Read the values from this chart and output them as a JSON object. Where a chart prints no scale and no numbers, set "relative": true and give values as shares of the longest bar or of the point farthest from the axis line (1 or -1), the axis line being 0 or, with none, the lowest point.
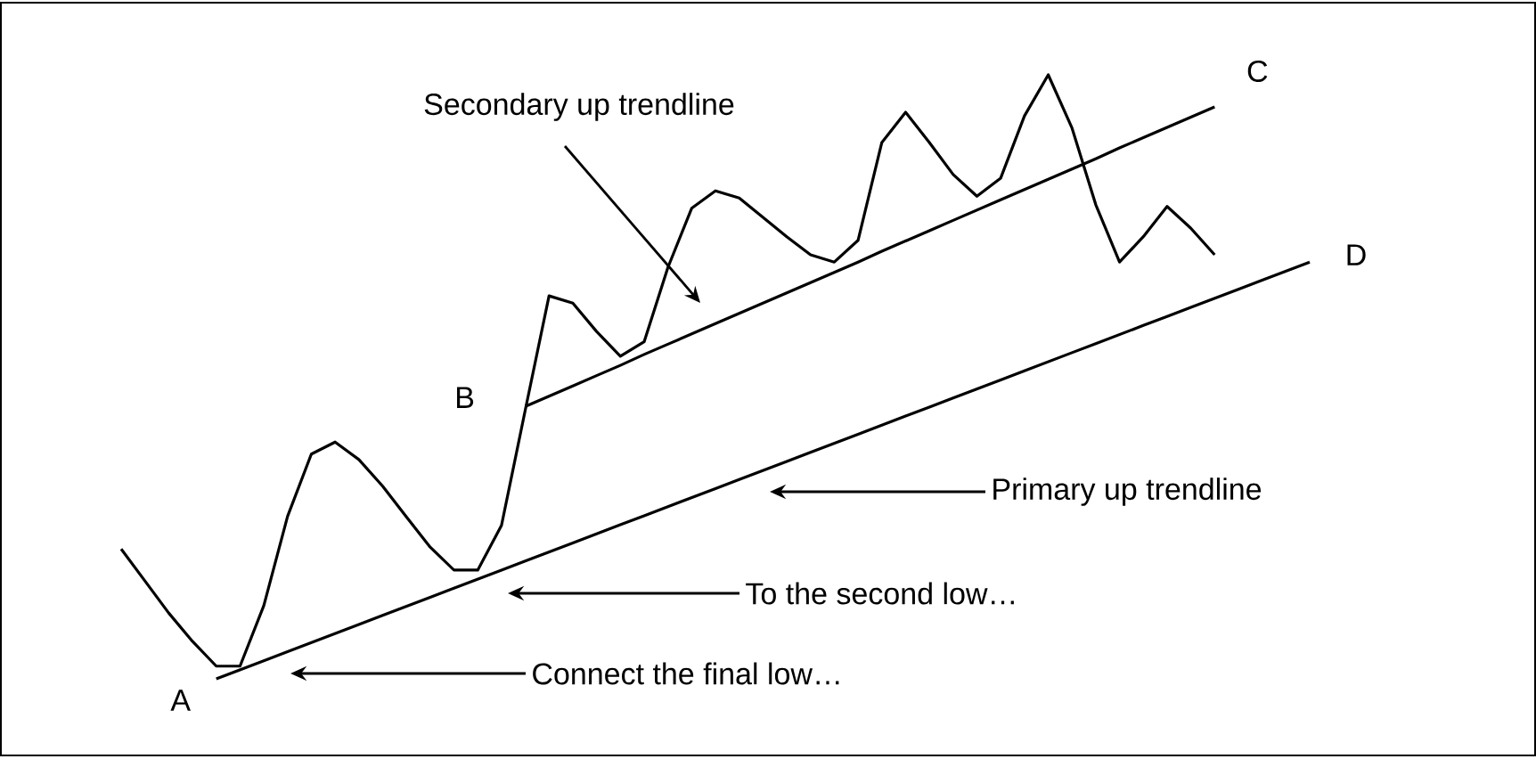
{
  "chart_data": {
    "type": "line",
    "relative": true,
    "categories": [
      null,
      null,
      null,
      null,
      null,
      null,
      null,
      null,
      null,
      null,
      null,
      null,
      null,
      null,
      null,
      null,
      null,
      null,
      null,
      null,
      null,
      null,
      null,
      null,
      null,
      null,
      null,
      null,
      null,
      null,
      null,
      null,
      null,
      null,
      null,
      null,
      null,
      null,
      null,
      null,
      null,
      null,
      null,
      null,
      null,
      null,
      null,
      null,
      null,
      null,
      null
    ],
    "series": [
      {
        "color": "#000000",
        "values": [
          0.215,
          0.162,
          0.109,
          0.062,
          0.021,
          0.021,
          0.121,
          0.269,
          0.372,
          0.392,
          0.363,
          0.319,
          0.268,
          0.218,
          0.18,
          0.18,
          0.254,
          0.445,
          0.634,
          0.622,
          0.575,
          0.534,
          0.558,
          0.681,
          0.779,
          0.808,
          0.796,
          0.764,
          0.732,
          0.702,
          0.69,
          0.726,
          0.888,
          0.938,
          0.888,
          0.835,
          0.799,
          0.829,
          0.932,
          1.0,
          0.912,
          0.785,
          0.69,
          0.732,
          0.782,
          0.746,
          0.702,
          null,
          null,
          null,
          null
        ]
      },
      {
        "color": "#000000",
        "values": [
          null,
          null,
          null,
          null,
          0,
          0.015,
          0.03,
          0.045,
          0.06,
          0.075,
          0.09,
          0.105,
          0.12,
          0.135,
          0.15,
          0.165,
          0.18,
          0.195,
          0.21,
          0.225,
          0.24,
          0.255,
          0.27,
          0.285,
          0.3,
          0.315,
          0.33,
          0.345,
          0.36,
          0.375,
          0.39,
          0.405,
          0.42,
          0.435,
          0.45,
          0.465,
          0.48,
          0.495,
          0.51,
          0.525,
          0.54,
          0.555,
          0.57,
          0.585,
          0.6,
          0.615,
          0.63,
          0.645,
          0.66,
          0.675,
          0.69
        ]
      },
      {
        "color": "#000000",
        "values": [
          null,
          null,
          null,
          null,
          null,
          null,
          null,
          null,
          null,
          null,
          null,
          null,
          null,
          null,
          null,
          null,
          null,
          0.451,
          0.468,
          0.485,
          0.502,
          0.519,
          0.537,
          0.554,
          0.571,
          0.588,
          0.605,
          0.622,
          0.639,
          0.656,
          0.673,
          0.69,
          0.708,
          0.725,
          0.742,
          0.759,
          0.776,
          0.793,
          0.81,
          0.827,
          0.844,
          0.861,
          0.879,
          0.896,
          0.913,
          0.93,
          0.947,
          null,
          null,
          null,
          null
        ]
      }
    ],
    "annotations": [
      "A",
      "B",
      "C",
      "D",
      "Secondary up trendline",
      "Primary up trendline",
      "To the second low…",
      "Connect the final low…"
    ]
  }
}
